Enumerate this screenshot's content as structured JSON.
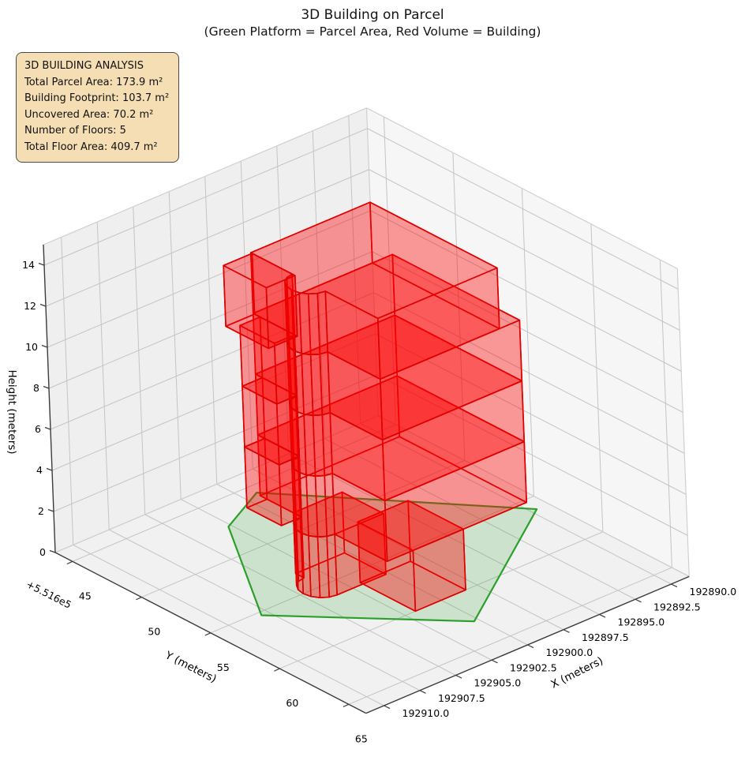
{
  "title": {
    "line1": "3D Building on Parcel",
    "line2": "(Green Platform = Parcel Area, Red Volume = Building)"
  },
  "info_box": {
    "lines": [
      "3D BUILDING ANALYSIS",
      "Total Parcel Area: 173.9 m²",
      "Building Footprint: 103.7 m²",
      "Uncovered Area: 70.2 m²",
      "Number of Floors: 5",
      "Total Floor Area: 409.7 m²"
    ],
    "bg_color": "#f5deb3",
    "border_color": "#4a4a4a"
  },
  "chart_data": {
    "type": "3d-building",
    "title": "3D Building on Parcel",
    "subtitle": "(Green Platform = Parcel Area, Red Volume = Building)",
    "analysis": {
      "total_parcel_area_m2": 173.9,
      "building_footprint_m2": 103.7,
      "uncovered_area_m2": 70.2,
      "number_of_floors": 5,
      "total_floor_area_m2": 409.7
    },
    "axes": {
      "x": {
        "label": "X (meters)",
        "range": [
          192888.75,
          192911.25
        ],
        "ticks": [
          192890.0,
          192892.5,
          192895.0,
          192897.5,
          192900.0,
          192902.5,
          192905.0,
          192907.5,
          192910.0
        ],
        "tick_labels": [
          "192890.0",
          "192892.5",
          "192895.0",
          "192897.5",
          "192900.0",
          "192902.5",
          "192905.0",
          "192907.5",
          "192910.0"
        ]
      },
      "y": {
        "label": "Y (meters)",
        "offset_label": "+5.516e5",
        "range": [
          43.75,
          66.25
        ],
        "ticks": [
          45,
          50,
          55,
          60,
          65
        ],
        "tick_labels": [
          "45",
          "50",
          "55",
          "60",
          "65"
        ]
      },
      "z": {
        "label": "Height (meters)",
        "range": [
          0,
          15
        ],
        "ticks": [
          0,
          2,
          4,
          6,
          8,
          10,
          12,
          14
        ],
        "tick_labels": [
          "0",
          "2",
          "4",
          "6",
          "8",
          "10",
          "12",
          "14"
        ]
      }
    },
    "colors": {
      "building_face": "rgba(255,0,0,0.22)",
      "building_edge": "#e00000",
      "parcel_face": "rgba(40,160,40,0.18)",
      "parcel_edge": "#2aa02a",
      "pane_floor": "#f1f1f1",
      "pane_left": "#efeff0",
      "pane_right": "#f6f6f7",
      "grid": "#c4c4c4",
      "pane_edge": "#cdcdcd",
      "axis_line": "#3c3c3c",
      "text": "#000000"
    },
    "parcel": {
      "polygon": [
        [
          192899.1,
          45.7
        ],
        [
          192889.6,
          56.1
        ],
        [
          192900.3,
          62.7
        ],
        [
          192908.0,
          55.3
        ],
        [
          192902.7,
          47.4
        ]
      ]
    },
    "building": {
      "floor_height_m": 2.96,
      "num_floors": 5,
      "z_levels": [
        0,
        2.96,
        5.92,
        8.88,
        11.84,
        14.8
      ],
      "footprints": {
        "core": [
          [
            192900.2,
            53.2
          ],
          [
            192903.6,
            53.2
          ],
          [
            192903.6,
            53.8
          ],
          [
            192904.06,
            53.89
          ],
          [
            192904.45,
            54.15
          ],
          [
            192904.71,
            54.54
          ],
          [
            192904.8,
            55.0
          ],
          [
            192904.71,
            55.46
          ],
          [
            192904.45,
            55.85
          ],
          [
            192904.06,
            56.11
          ],
          [
            192903.6,
            56.2
          ],
          [
            192900.2,
            56.2
          ]
        ],
        "annex": [
          [
            192901.8,
            56.0
          ],
          [
            192898.3,
            56.0
          ],
          [
            192898.3,
            60.0
          ],
          [
            192901.8,
            60.0
          ]
        ],
        "main": [
          [
            192903.6,
            50.8
          ],
          [
            192903.6,
            53.8
          ],
          [
            192904.06,
            53.89
          ],
          [
            192904.45,
            54.15
          ],
          [
            192904.71,
            54.54
          ],
          [
            192904.8,
            55.0
          ],
          [
            192904.71,
            55.46
          ],
          [
            192904.45,
            55.85
          ],
          [
            192904.06,
            56.11
          ],
          [
            192903.6,
            56.2
          ],
          [
            192903.6,
            60.0
          ],
          [
            192893.9,
            60.0
          ],
          [
            192893.9,
            50.8
          ]
        ],
        "main_top": [
          [
            192903.6,
            50.8
          ],
          [
            192903.6,
            53.8
          ],
          [
            192904.06,
            53.89
          ],
          [
            192904.45,
            54.15
          ],
          [
            192904.71,
            54.54
          ],
          [
            192904.8,
            55.0
          ],
          [
            192904.71,
            55.46
          ],
          [
            192904.45,
            55.85
          ],
          [
            192904.06,
            56.11
          ],
          [
            192903.6,
            56.2
          ],
          [
            192903.6,
            60.0
          ],
          [
            192895.3,
            60.0
          ],
          [
            192895.3,
            50.8
          ]
        ],
        "lobe": [
          [
            192905.0,
            51.3
          ],
          [
            192903.6,
            51.3
          ],
          [
            192903.6,
            53.8
          ],
          [
            192905.0,
            53.8
          ]
        ],
        "lobe_top": [
          [
            192905.6,
            50.9
          ],
          [
            192903.6,
            50.9
          ],
          [
            192903.6,
            54.0
          ],
          [
            192905.6,
            54.0
          ]
        ]
      },
      "parts": [
        {
          "name": "ground-core",
          "footprint": "core",
          "z0": 0,
          "z1": 2.96
        },
        {
          "name": "ground-annex",
          "footprint": "annex",
          "z0": 0,
          "z1": 2.96
        },
        {
          "name": "floor-2-main",
          "footprint": "main",
          "z0": 2.96,
          "z1": 5.92
        },
        {
          "name": "floor-2-lobe",
          "footprint": "lobe",
          "z0": 2.96,
          "z1": 5.92
        },
        {
          "name": "floor-3-main",
          "footprint": "main",
          "z0": 5.92,
          "z1": 8.88
        },
        {
          "name": "floor-3-lobe",
          "footprint": "lobe",
          "z0": 5.92,
          "z1": 8.88
        },
        {
          "name": "floor-4-main",
          "footprint": "main",
          "z0": 8.88,
          "z1": 11.84
        },
        {
          "name": "floor-4-lobe",
          "footprint": "lobe",
          "z0": 8.88,
          "z1": 11.84
        },
        {
          "name": "floor-5-main",
          "footprint": "main_top",
          "z0": 11.84,
          "z1": 14.8
        },
        {
          "name": "floor-5-lobe",
          "footprint": "lobe_top",
          "z0": 11.84,
          "z1": 14.8
        }
      ]
    }
  }
}
